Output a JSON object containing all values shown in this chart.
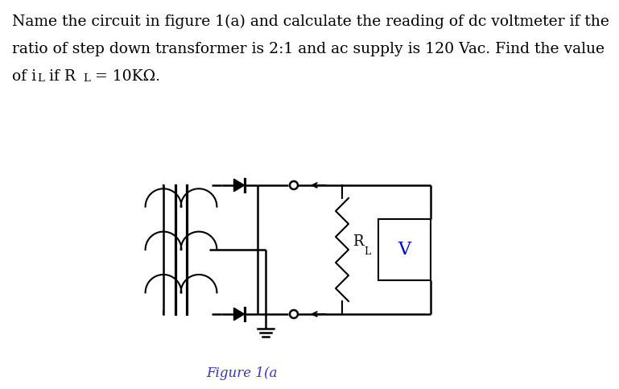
{
  "bg_color": "#ffffff",
  "text_color": "#000000",
  "line_color": "#000000",
  "figure_label": "Figure 1(a",
  "figure_label_color": "#3333cc",
  "line1": "Name the circuit in figure 1(a) and calculate the reading of dc voltmeter if the",
  "line2": "ratio of step down transformer is 2:1 and ac supply is 120 Vac. Find the value",
  "line3a": "of i",
  "line3b": "L",
  "line3c": " if R",
  "line3d": "L",
  "line3e": " = 10KΩ.",
  "V_color": "#0000cc"
}
